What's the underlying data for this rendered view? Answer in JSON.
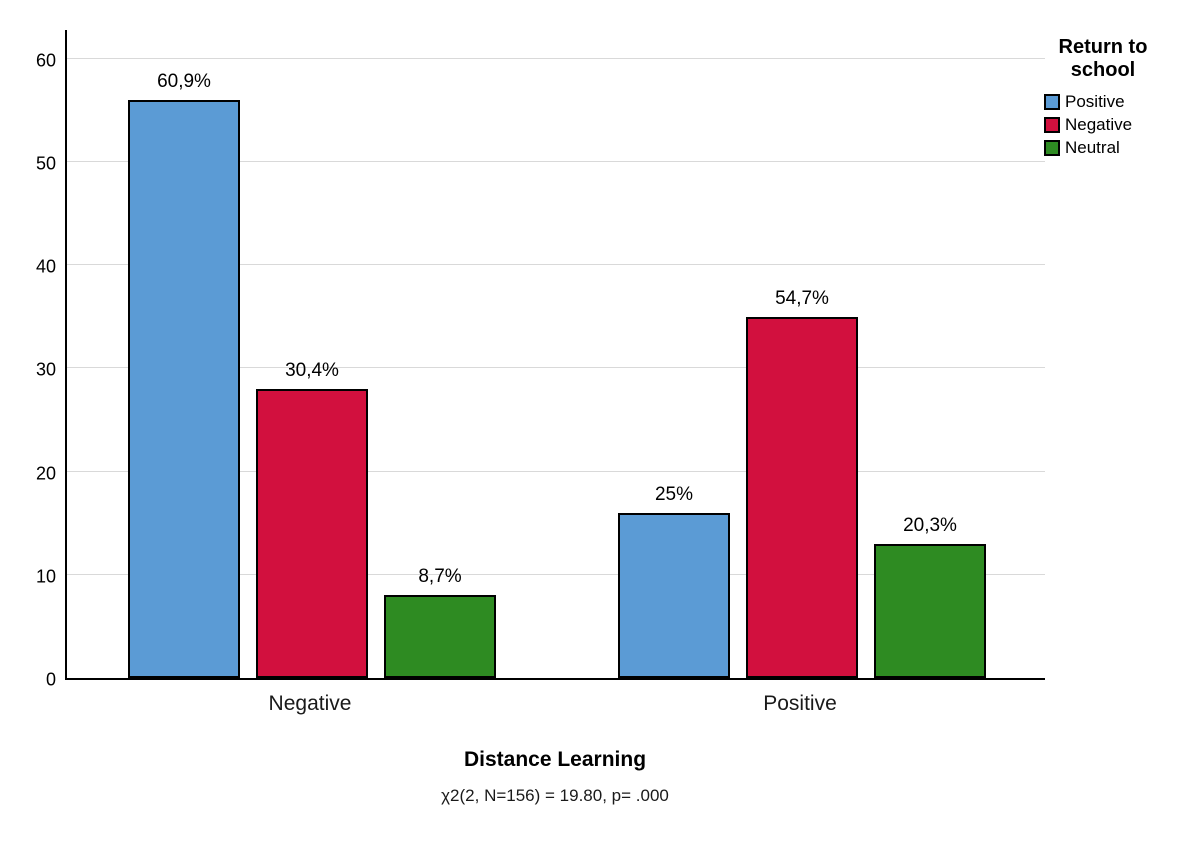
{
  "chart_data": {
    "type": "bar",
    "title": "",
    "xlabel": "Distance Learning",
    "ylabel": "",
    "caption": "χ2(2, N=156) = 19.80, p= .000",
    "categories": [
      "Negative",
      "Positive"
    ],
    "ylim": [
      0,
      63
    ],
    "yticks": [
      0,
      10,
      20,
      30,
      40,
      50,
      60
    ],
    "grid": "horizontal",
    "legend_title": "Return to school",
    "legend_position": "top-right-outside",
    "series": [
      {
        "name": "Positive",
        "color": "#5B9BD5",
        "counts": [
          56,
          16
        ],
        "labels": [
          "60,9%",
          "25%"
        ]
      },
      {
        "name": "Negative",
        "color": "#D2103E",
        "counts": [
          28,
          35
        ],
        "labels": [
          "30,4%",
          "54,7%"
        ]
      },
      {
        "name": "Neutral",
        "color": "#2E8B22",
        "counts": [
          8,
          13
        ],
        "labels": [
          "8,7%",
          "20,3%"
        ]
      }
    ]
  }
}
